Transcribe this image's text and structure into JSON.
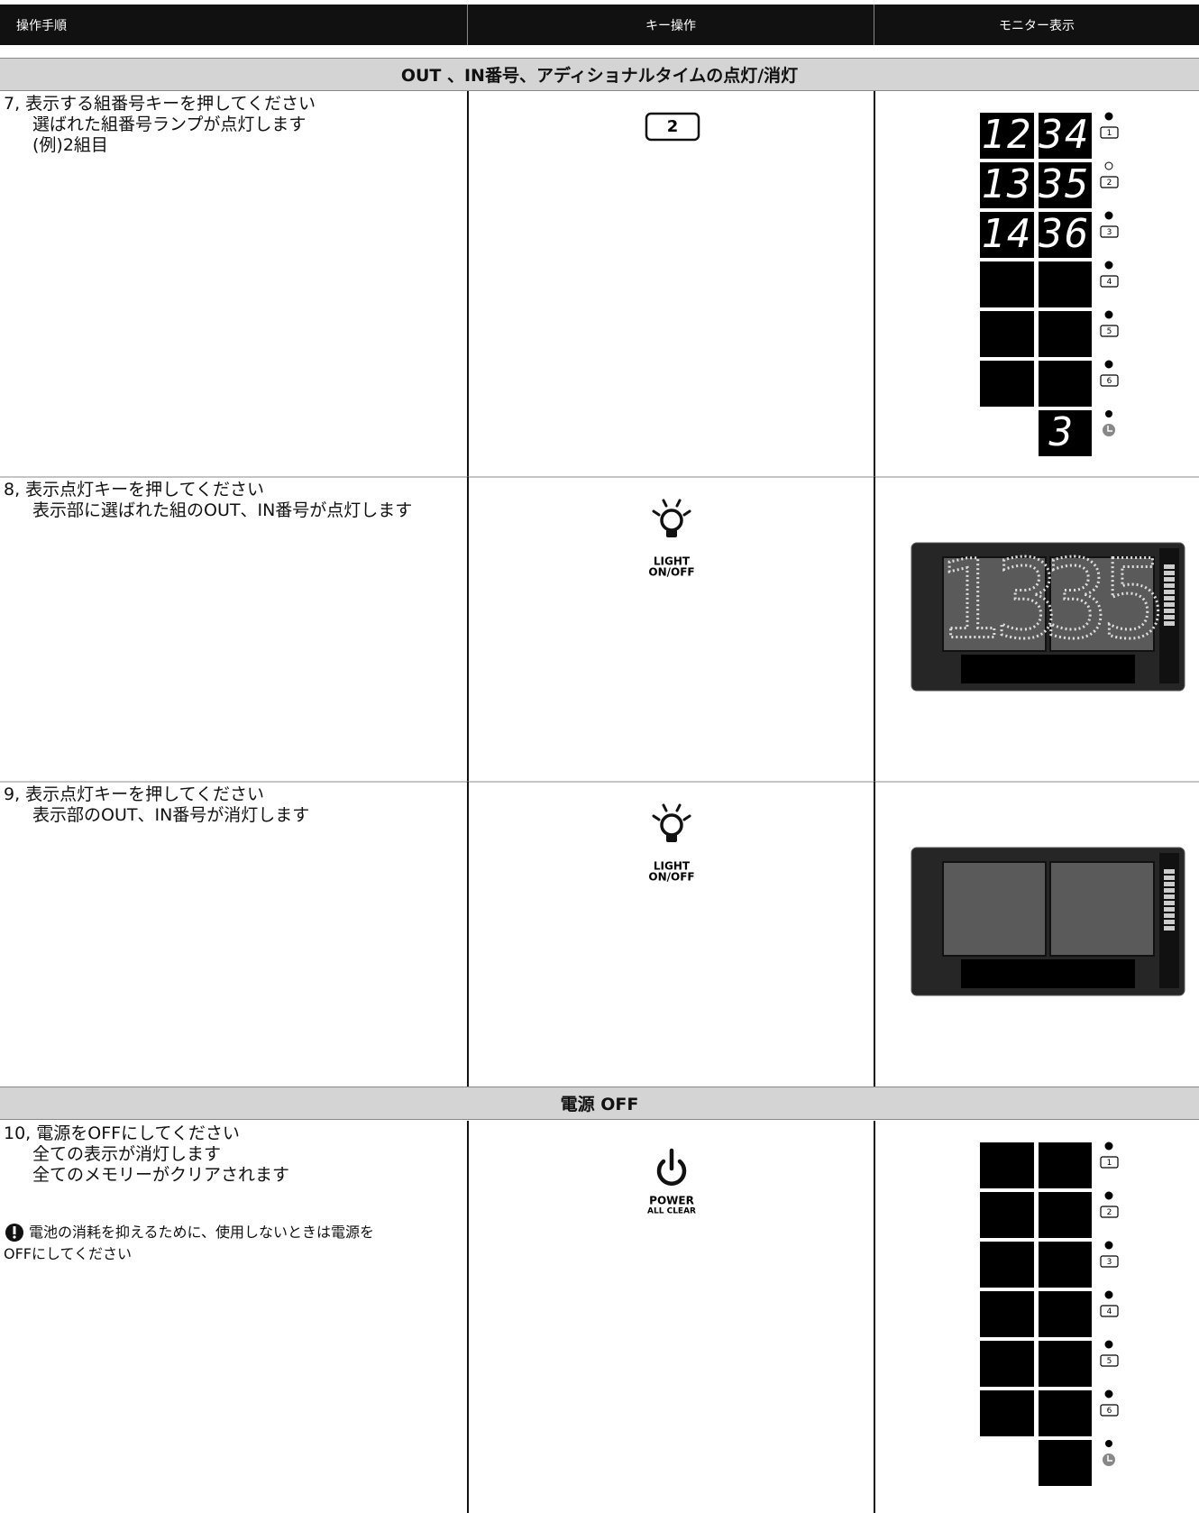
{
  "header": {
    "columns": [
      "操作手順",
      "キー操作",
      "モニター表示"
    ]
  },
  "sections": [
    {
      "title": "OUT 、IN番号、アディショナルタイムの点灯/消灯",
      "rows": [
        {
          "step": [
            "7, 表示する組番号キーを押してください",
            "選ばれた組番号ランプが点灯します",
            "(例)2組目"
          ],
          "key": {
            "type": "number",
            "label": "2"
          },
          "monitor": {
            "type": "panel",
            "keys": [
              "1",
              "2",
              "3",
              "4",
              "5",
              "6"
            ],
            "selected_key_index": 1,
            "readings": [
              [
                "12",
                "34"
              ],
              [
                "13",
                "35"
              ],
              [
                "14",
                "36"
              ]
            ],
            "additional": "3"
          }
        },
        {
          "step": [
            "8, 表示点灯キーを押してください",
            "表示部に選ばれた組のOUT、IN番号が点灯します"
          ],
          "key": {
            "type": "light",
            "label": [
              "LIGHT",
              "ON/OFF"
            ]
          },
          "monitor": {
            "type": "scoreboard",
            "out": "13",
            "in": "35"
          }
        },
        {
          "step": [
            "9, 表示点灯キーを押してください",
            "表示部のOUT、IN番号が消灯します"
          ],
          "key": {
            "type": "light",
            "label": [
              "LIGHT",
              "ON/OFF"
            ]
          },
          "monitor": {
            "type": "scoreboard"
          }
        }
      ]
    },
    {
      "title": "電源 OFF",
      "rows": [
        {
          "step": [
            "10, 電源をOFFにしてください",
            "全ての表示が消灯します",
            "全てのメモリーがクリアされます"
          ],
          "note": [
            "電池の消耗を抑えるために、使用しないときは電源を",
            "OFFにしてください"
          ],
          "key": {
            "type": "power",
            "label": [
              "POWER",
              "ALL CLEAR"
            ]
          },
          "monitor": {
            "type": "panel",
            "keys": [
              "1",
              "2",
              "3",
              "4",
              "5",
              "6"
            ],
            "readings": []
          }
        }
      ]
    }
  ]
}
